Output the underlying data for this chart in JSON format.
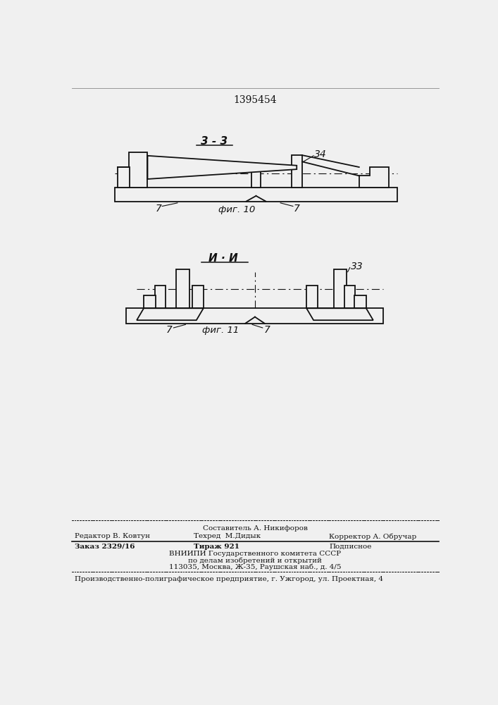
{
  "bg_color": "#f0f0f0",
  "patent_number": "1395454",
  "section_label_1": "3 - 3",
  "section_label_2": "И · И",
  "fig_label_1": "фиг. 10",
  "fig_label_2": "фиг. 11",
  "label_7": "7",
  "label_33": "33",
  "label_34": "34",
  "footer_sestavitel": "Составитель А. Никифоров",
  "footer_redaktor": "Редактор В. Ковтун",
  "footer_tehred": "Техред  М.Дидык",
  "footer_korrektor": "Корректор А. Обручар",
  "footer_zakaz": "Заказ 2329/16",
  "footer_tirazh": "Тираж 921",
  "footer_podpisnoe": "Подписное",
  "footer_vniipи": "ВНИИПИ Государственного комитета СССР",
  "footer_dela": "по делам изобретений и открытий",
  "footer_addr": "113035, Москва, Ж-35, Раушская наб., д. 4/5",
  "footer_proizv": "Производственно-полиграфическое предприятие, г. Ужгород, ул. Проектная, 4"
}
